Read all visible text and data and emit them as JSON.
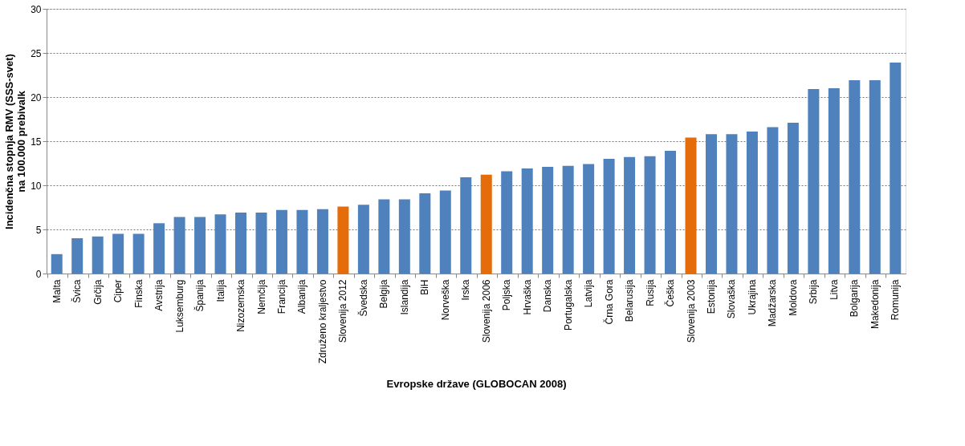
{
  "chart_data": {
    "type": "bar",
    "xlabel": "Evropske države (GLOBOCAN 2008)",
    "ylabel": "Incidenčna stopnja RMV  (SSS-svet)\nna 100.000  prebivalk",
    "categories": [
      "Malta",
      "Švica",
      "Grčija",
      "Ciper",
      "Finska",
      "Avstrija",
      "Luksemburg",
      "Španija",
      "Italija",
      "Nizozemska",
      "Nemčija",
      "Francija",
      "Albanija",
      "Združeno kraljestvo",
      "Slovenija 2012",
      "Švedska",
      "Belgija",
      "Islandija",
      "BiH",
      "Norveška",
      "Irska",
      "Slovenija 2006",
      "Poljska",
      "Hrvaška",
      "Danska",
      "Portugalska",
      "Latvija",
      "Črna Gora",
      "Belarusija",
      "Rusija",
      "Češka",
      "Slovenija 2003",
      "Estonija",
      "Slovaška",
      "Ukrajina",
      "Madžarska",
      "Moldova",
      "Srbija",
      "Litva",
      "Bolgarija",
      "Makedonija",
      "Romunija"
    ],
    "values": [
      2.2,
      4.0,
      4.2,
      4.5,
      4.5,
      5.7,
      6.4,
      6.4,
      6.7,
      6.9,
      6.9,
      7.2,
      7.2,
      7.3,
      7.6,
      7.8,
      8.4,
      8.4,
      9.1,
      9.4,
      10.9,
      11.2,
      11.6,
      11.9,
      12.1,
      12.2,
      12.4,
      13.0,
      13.2,
      13.3,
      13.9,
      15.4,
      15.8,
      15.8,
      16.1,
      16.6,
      17.1,
      20.9,
      21.0,
      21.9,
      21.9,
      23.9
    ],
    "colors": [
      "#4f81bd",
      "#4f81bd",
      "#4f81bd",
      "#4f81bd",
      "#4f81bd",
      "#4f81bd",
      "#4f81bd",
      "#4f81bd",
      "#4f81bd",
      "#4f81bd",
      "#4f81bd",
      "#4f81bd",
      "#4f81bd",
      "#4f81bd",
      "#e46c0a",
      "#4f81bd",
      "#4f81bd",
      "#4f81bd",
      "#4f81bd",
      "#4f81bd",
      "#4f81bd",
      "#e46c0a",
      "#4f81bd",
      "#4f81bd",
      "#4f81bd",
      "#4f81bd",
      "#4f81bd",
      "#4f81bd",
      "#4f81bd",
      "#4f81bd",
      "#4f81bd",
      "#e46c0a",
      "#4f81bd",
      "#4f81bd",
      "#4f81bd",
      "#4f81bd",
      "#4f81bd",
      "#4f81bd",
      "#4f81bd",
      "#4f81bd",
      "#4f81bd",
      "#4f81bd"
    ],
    "ylim": [
      0,
      30
    ],
    "yticks": [
      0,
      5,
      10,
      15,
      20,
      25,
      30
    ],
    "grid": "y"
  }
}
